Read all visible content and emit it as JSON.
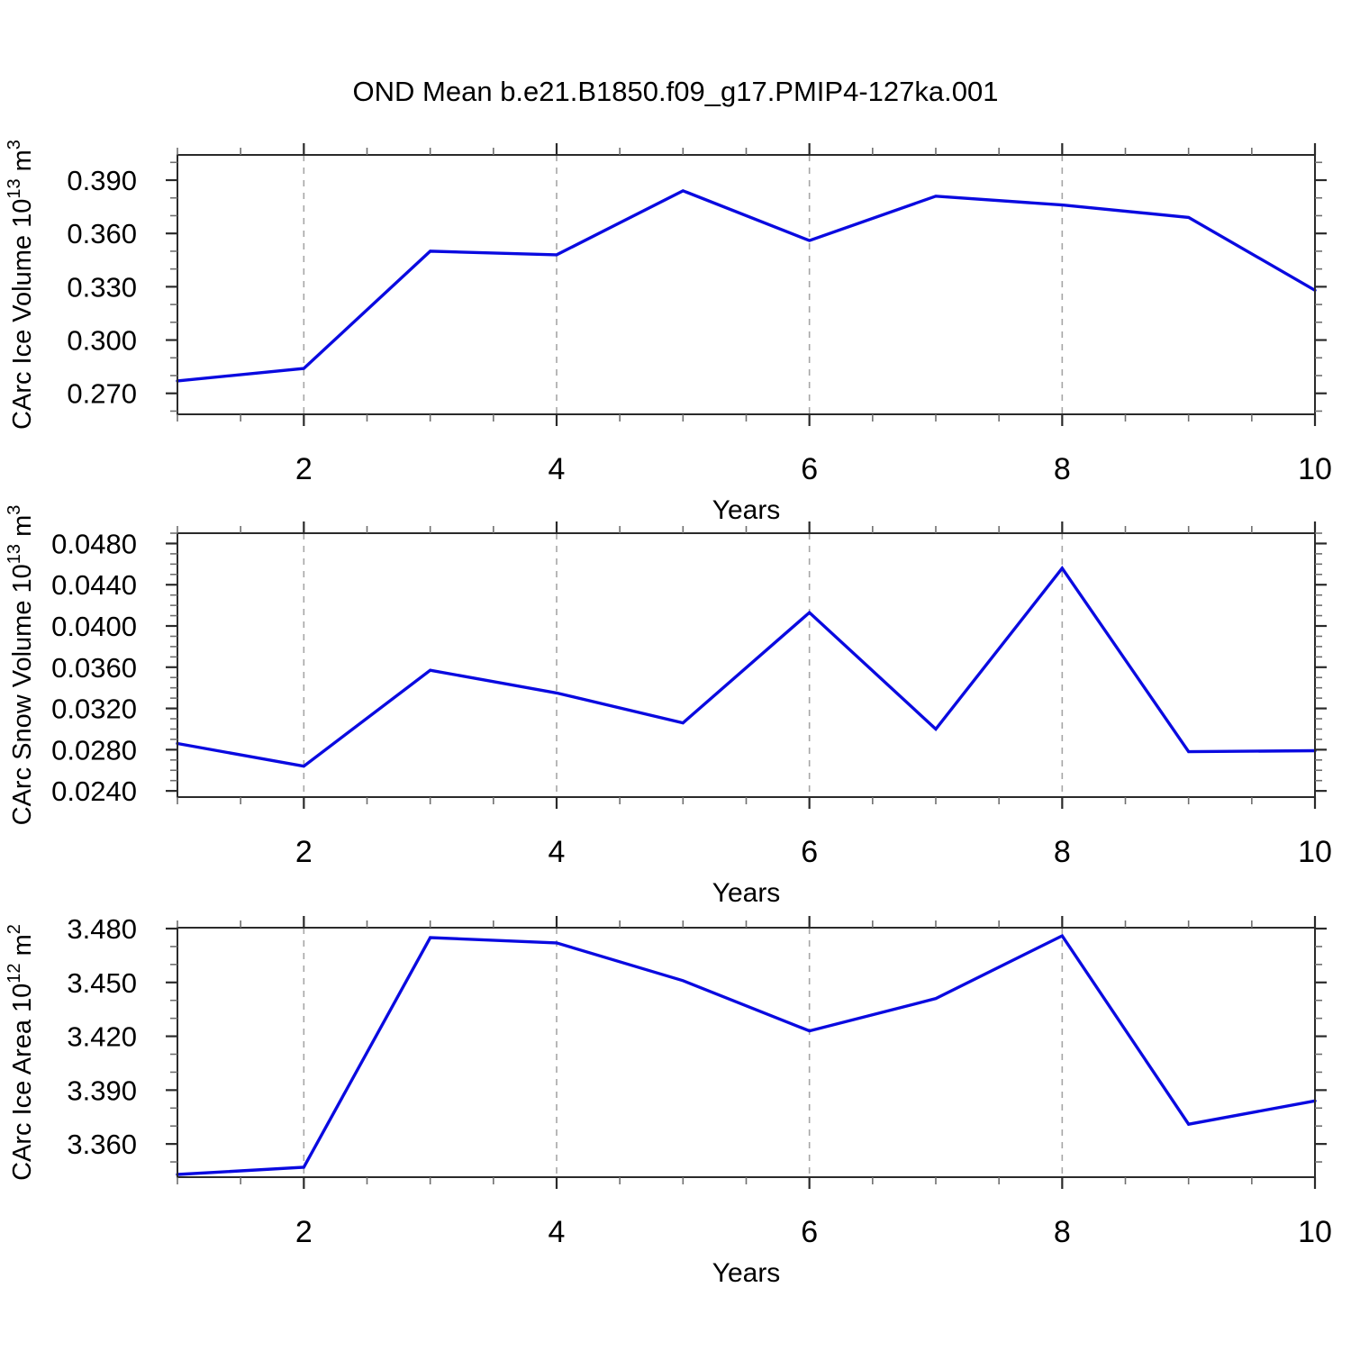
{
  "title": "OND Mean b.e21.B1850.f09_g17.PMIP4-127ka.001",
  "chart_data": [
    {
      "type": "line",
      "name": "ice-volume",
      "ylabel": "CArc Ice Volume 10^13 m^3",
      "ylabel_parts": [
        {
          "t": "CArc Ice Volume 10"
        },
        {
          "t": "13",
          "sup": true
        },
        {
          "t": " m"
        },
        {
          "t": "3",
          "sup": true
        }
      ],
      "xlabel": "Years",
      "x": [
        1,
        2,
        3,
        4,
        5,
        6,
        7,
        8,
        9,
        10
      ],
      "values": [
        0.277,
        0.284,
        0.35,
        0.348,
        0.384,
        0.356,
        0.381,
        0.376,
        0.369,
        0.328
      ],
      "xlim": [
        1,
        10
      ],
      "ylim": [
        0.2582,
        0.4042
      ],
      "xtick_labels": [
        "2",
        "4",
        "6",
        "8",
        "10"
      ],
      "xtick_values": [
        2,
        4,
        6,
        8,
        10
      ],
      "x_minor_step": 0.5,
      "ytick_labels": [
        "0.270",
        "0.300",
        "0.330",
        "0.360",
        "0.390"
      ],
      "ytick_values": [
        0.27,
        0.3,
        0.33,
        0.36,
        0.39
      ],
      "y_minor_step": 0.01,
      "gridlines_x": [
        2,
        4,
        6,
        8
      ],
      "grid_on": true,
      "legend": "none",
      "line_color": "#0a0ae0",
      "grid_color": "#a6a6a6"
    },
    {
      "type": "line",
      "name": "snow-volume",
      "ylabel": "CArc Snow Volume 10^13 m^3",
      "ylabel_parts": [
        {
          "t": "CArc Snow Volume 10"
        },
        {
          "t": "13",
          "sup": true
        },
        {
          "t": " m"
        },
        {
          "t": "3",
          "sup": true
        }
      ],
      "xlabel": "Years",
      "x": [
        1,
        2,
        3,
        4,
        5,
        6,
        7,
        8,
        9,
        10
      ],
      "values": [
        0.0286,
        0.0264,
        0.0357,
        0.0335,
        0.0306,
        0.0413,
        0.03,
        0.0456,
        0.0278,
        0.0279
      ],
      "xlim": [
        1,
        10
      ],
      "ylim": [
        0.0234,
        0.049
      ],
      "xtick_labels": [
        "2",
        "4",
        "6",
        "8",
        "10"
      ],
      "xtick_values": [
        2,
        4,
        6,
        8,
        10
      ],
      "x_minor_step": 0.5,
      "ytick_labels": [
        "0.0240",
        "0.0280",
        "0.0320",
        "0.0360",
        "0.0400",
        "0.0440",
        "0.0480"
      ],
      "ytick_values": [
        0.024,
        0.028,
        0.032,
        0.036,
        0.04,
        0.044,
        0.048
      ],
      "y_minor_step": 0.001,
      "gridlines_x": [
        2,
        4,
        6,
        8
      ],
      "grid_on": true,
      "legend": "none",
      "line_color": "#0a0ae0",
      "grid_color": "#a6a6a6"
    },
    {
      "type": "line",
      "name": "ice-area",
      "ylabel": "CArc Ice Area 10^12 m^2",
      "ylabel_parts": [
        {
          "t": "CArc Ice Area 10"
        },
        {
          "t": "12",
          "sup": true
        },
        {
          "t": " m"
        },
        {
          "t": "2",
          "sup": true
        }
      ],
      "xlabel": "Years",
      "x": [
        1,
        2,
        3,
        4,
        5,
        6,
        7,
        8,
        9,
        10
      ],
      "values": [
        3.343,
        3.347,
        3.475,
        3.472,
        3.451,
        3.423,
        3.441,
        3.476,
        3.371,
        3.384
      ],
      "xlim": [
        1,
        10
      ],
      "ylim": [
        3.3415,
        3.4805
      ],
      "xtick_labels": [
        "2",
        "4",
        "6",
        "8",
        "10"
      ],
      "xtick_values": [
        2,
        4,
        6,
        8,
        10
      ],
      "x_minor_step": 0.5,
      "ytick_labels": [
        "3.360",
        "3.390",
        "3.420",
        "3.450",
        "3.480"
      ],
      "ytick_values": [
        3.36,
        3.39,
        3.42,
        3.45,
        3.48
      ],
      "y_minor_step": 0.01,
      "gridlines_x": [
        2,
        4,
        6,
        8
      ],
      "grid_on": true,
      "legend": "none",
      "line_color": "#0a0ae0",
      "grid_color": "#a6a6a6"
    }
  ]
}
